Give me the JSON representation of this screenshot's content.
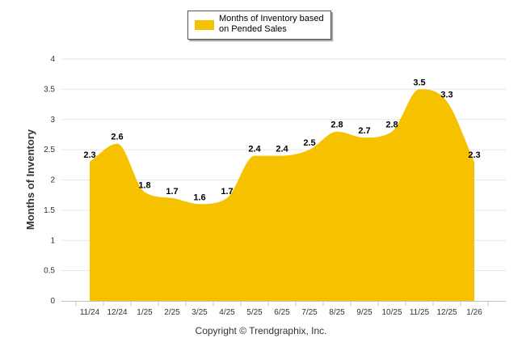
{
  "legend": {
    "label": "Months of Inventory based on Pended Sales"
  },
  "copyright": "Copyright © Trendgraphix, Inc.",
  "colors": {
    "series": "#f6c200",
    "grid": "#e6e6e6",
    "axis": "#c0c0c0"
  },
  "chart_data": {
    "type": "area",
    "title": "",
    "xlabel": "",
    "ylabel": "Months of Inventory",
    "ylim": [
      0,
      4
    ],
    "yticks": [
      "0",
      "0.5",
      "1",
      "1.5",
      "2",
      "2.5",
      "3",
      "3.5",
      "4"
    ],
    "categories": [
      "11/24",
      "12/24",
      "1/25",
      "2/25",
      "3/25",
      "4/25",
      "5/25",
      "6/25",
      "7/25",
      "8/25",
      "9/25",
      "10/25",
      "11/25",
      "12/25",
      "1/26"
    ],
    "series": [
      {
        "name": "Months of Inventory based on Pended Sales",
        "values": [
          2.3,
          2.6,
          1.8,
          1.7,
          1.6,
          1.7,
          2.4,
          2.4,
          2.5,
          2.8,
          2.7,
          2.8,
          3.5,
          3.3,
          2.3
        ],
        "labels": [
          "2.3",
          "2.6",
          "1.8",
          "1.7",
          "1.6",
          "1.7",
          "2.4",
          "2.4",
          "2.5",
          "2.8",
          "2.7",
          "2.8",
          "3.5",
          "3.3",
          "2.3"
        ]
      }
    ],
    "grid": true,
    "legend_position": "top-center"
  }
}
